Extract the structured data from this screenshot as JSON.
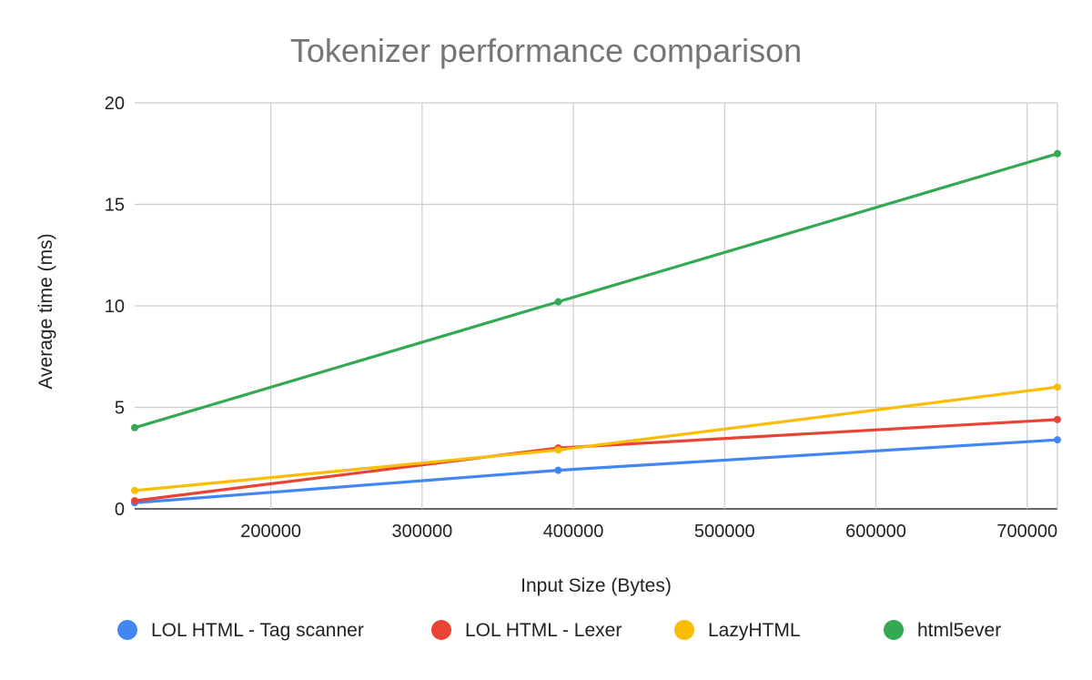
{
  "chart_data": {
    "type": "line",
    "title": "Tokenizer performance comparison",
    "xlabel": "Input  Size (Bytes)",
    "ylabel": "Average time  (ms)",
    "xlim": [
      110000,
      720000
    ],
    "ylim": [
      0,
      20
    ],
    "x_ticks": [
      200000,
      300000,
      400000,
      500000,
      600000,
      700000
    ],
    "y_ticks": [
      0,
      5,
      10,
      15,
      20
    ],
    "grid": true,
    "legend_position": "bottom",
    "series": [
      {
        "name": "LOL HTML - Tag scanner",
        "color": "#4285f4",
        "x": [
          110000,
          390000,
          720000
        ],
        "y": [
          0.3,
          1.9,
          3.4
        ]
      },
      {
        "name": "LOL HTML - Lexer",
        "color": "#ea4335",
        "x": [
          110000,
          390000,
          720000
        ],
        "y": [
          0.4,
          3.0,
          4.4
        ]
      },
      {
        "name": "LazyHTML",
        "color": "#fbbc04",
        "x": [
          110000,
          390000,
          720000
        ],
        "y": [
          0.9,
          2.9,
          6.0
        ]
      },
      {
        "name": "html5ever",
        "color": "#34a853",
        "x": [
          110000,
          390000,
          720000
        ],
        "y": [
          4.0,
          10.2,
          17.5
        ]
      }
    ]
  }
}
